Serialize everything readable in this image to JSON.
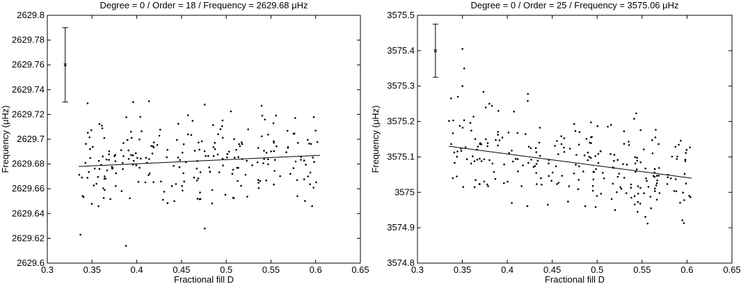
{
  "chart_data": [
    {
      "type": "scatter",
      "title": "Degree = 0 / Order = 18 / Frequency = 2629.68 μHz",
      "xlabel": "Fractional fill D",
      "ylabel": "Frequency (μHz)",
      "xlim": [
        0.3,
        0.65
      ],
      "ylim": [
        2629.6,
        2629.8
      ],
      "xticks": [
        0.3,
        0.35,
        0.4,
        0.45,
        0.5,
        0.55,
        0.6,
        0.65
      ],
      "yticks": [
        2629.6,
        2629.62,
        2629.64,
        2629.66,
        2629.68,
        2629.7,
        2629.72,
        2629.74,
        2629.76,
        2629.78,
        2629.8
      ],
      "xtick_labels": [
        "0.3",
        "0.35",
        "0.4",
        "0.45",
        "0.5",
        "0.55",
        "0.6",
        "0.65"
      ],
      "ytick_labels": [
        "2629.6",
        "2629.62",
        "2629.64",
        "2629.66",
        "2629.68",
        "2629.7",
        "2629.72",
        "2629.74",
        "2629.76",
        "2629.78",
        "2629.8"
      ],
      "fit_line": {
        "x": [
          0.335,
          0.605
        ],
        "y": [
          2629.678,
          2629.687
        ]
      },
      "error_bar": {
        "x": 0.32,
        "y": 2629.76,
        "low": 2629.73,
        "high": 2629.79
      },
      "grid": false,
      "scatter": {
        "seed": 18,
        "count": 240,
        "x_range": [
          0.335,
          0.605
        ],
        "center_start": 2629.678,
        "center_end": 2629.687,
        "spread": 0.018,
        "outliers": [
          [
            0.337,
            2629.623
          ],
          [
            0.388,
            2629.614
          ],
          [
            0.476,
            2629.628
          ],
          [
            0.345,
            2629.729
          ],
          [
            0.396,
            2629.73
          ],
          [
            0.476,
            2629.728
          ],
          [
            0.596,
            2629.646
          ]
        ]
      }
    },
    {
      "type": "scatter",
      "title": "Degree = 0 / Order = 25 / Frequency = 3575.06 μHz",
      "xlabel": "Fractional fill D",
      "ylabel": "Frequency (μHz)",
      "xlim": [
        0.3,
        0.65
      ],
      "ylim": [
        3574.8,
        3575.5
      ],
      "xticks": [
        0.3,
        0.35,
        0.4,
        0.45,
        0.5,
        0.55,
        0.6,
        0.65
      ],
      "yticks": [
        3574.8,
        3574.9,
        3575.0,
        3575.1,
        3575.2,
        3575.3,
        3575.4,
        3575.5
      ],
      "xtick_labels": [
        "0.3",
        "0.35",
        "0.4",
        "0.45",
        "0.5",
        "0.55",
        "0.6",
        "0.65"
      ],
      "ytick_labels": [
        "3574.8",
        "3574.9",
        "3575",
        "3575.1",
        "3575.2",
        "3575.3",
        "3575.4",
        "3575.5"
      ],
      "fit_line": {
        "x": [
          0.335,
          0.605
        ],
        "y": [
          3575.13,
          3575.04
        ]
      },
      "error_bar": {
        "x": 0.32,
        "y": 3575.4,
        "low": 3575.325,
        "high": 3575.475
      },
      "grid": false,
      "scatter": {
        "seed": 25,
        "count": 250,
        "x_range": [
          0.335,
          0.605
        ],
        "center_start": 3575.13,
        "center_end": 3575.04,
        "spread": 0.06,
        "outliers": [
          [
            0.35,
            3575.405
          ],
          [
            0.352,
            3575.35
          ],
          [
            0.35,
            3575.3
          ],
          [
            0.345,
            3575.27
          ],
          [
            0.423,
            3575.278
          ],
          [
            0.405,
            3574.97
          ],
          [
            0.445,
            3574.965
          ],
          [
            0.52,
            3574.95
          ],
          [
            0.545,
            3574.945
          ],
          [
            0.56,
            3574.955
          ],
          [
            0.38,
            3575.25
          ],
          [
            0.39,
            3575.23
          ]
        ]
      }
    }
  ]
}
